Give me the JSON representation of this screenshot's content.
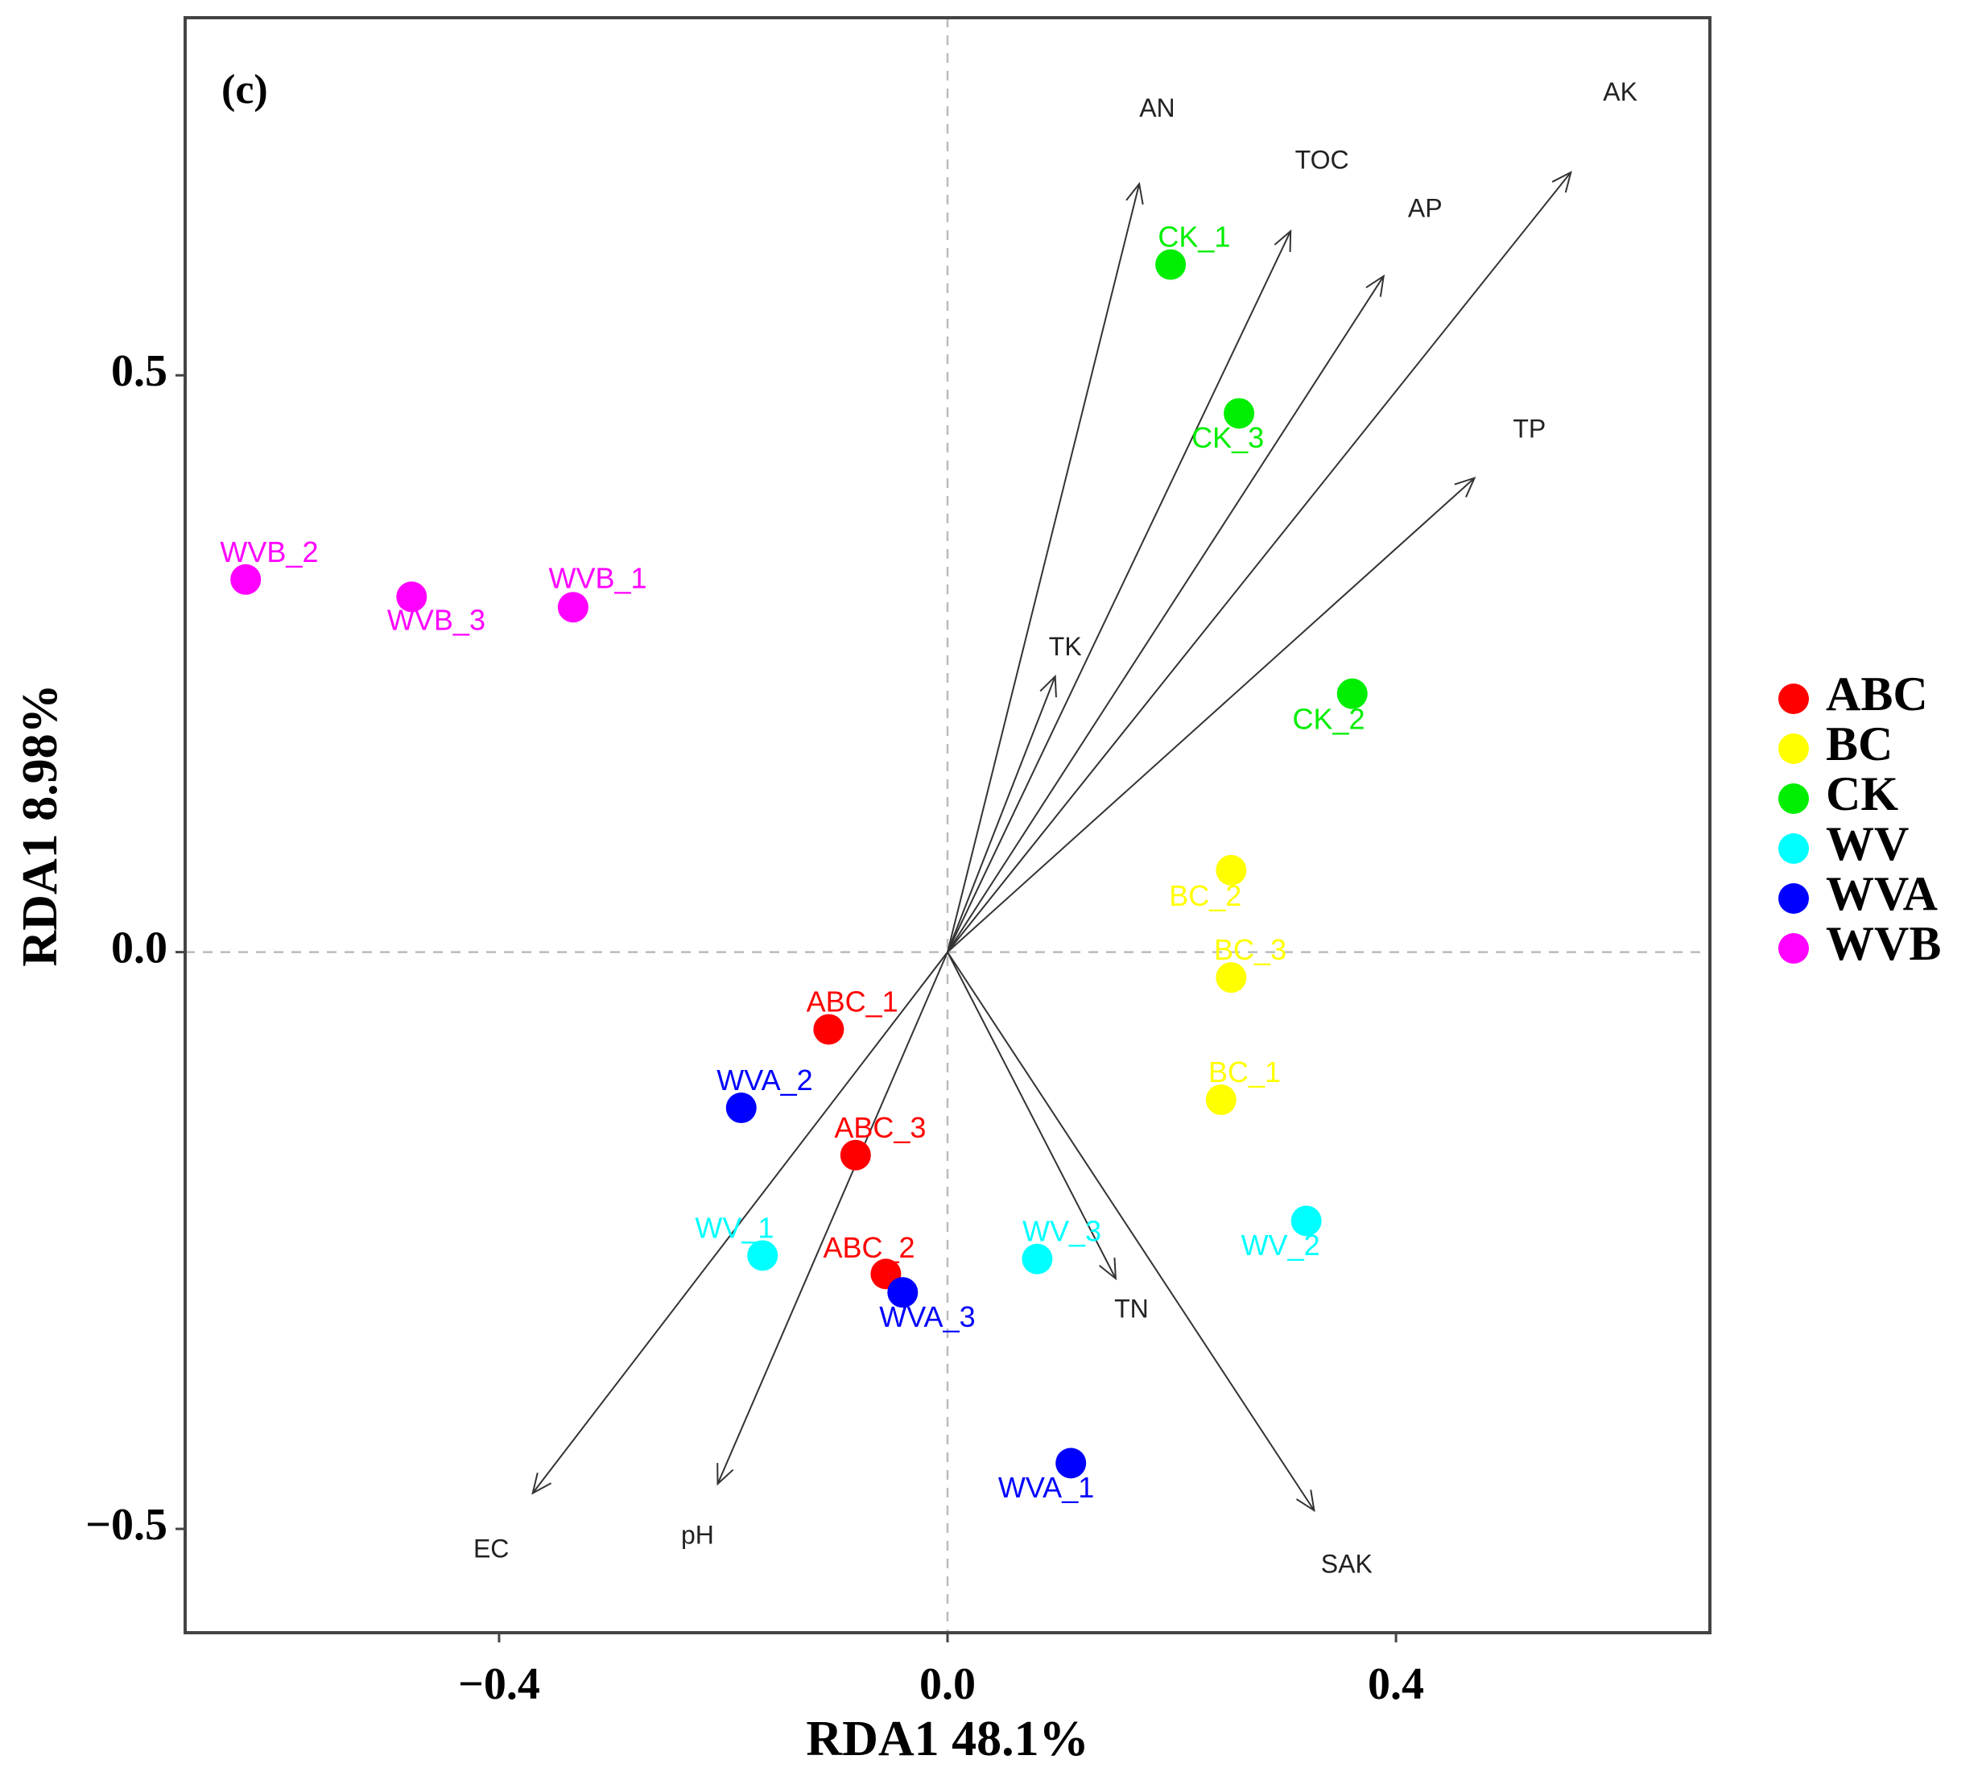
{
  "chart_data": {
    "type": "scatter",
    "panel_label": "(c)",
    "xlabel": "RDA1 48.1%",
    "ylabel": "RDA1 8.98%",
    "xlim": [
      -0.68,
      0.68
    ],
    "ylim": [
      -0.59,
      0.81
    ],
    "xticks": [
      {
        "value": -0.4,
        "label": "−0.4"
      },
      {
        "value": 0.0,
        "label": "0.0"
      },
      {
        "value": 0.4,
        "label": "0.4"
      }
    ],
    "yticks": [
      {
        "value": -0.5,
        "label": "−0.5"
      },
      {
        "value": 0.0,
        "label": "0.0"
      },
      {
        "value": 0.5,
        "label": "0.5"
      }
    ],
    "grid": false,
    "reference_lines": {
      "x": 0,
      "y": 0,
      "style": "dashed"
    },
    "legend_position": "right",
    "groups": [
      {
        "name": "ABC",
        "color": "#ff0000"
      },
      {
        "name": "BC",
        "color": "#ffff00"
      },
      {
        "name": "CK",
        "color": "#00ee00"
      },
      {
        "name": "WV",
        "color": "#00ffff"
      },
      {
        "name": "WVA",
        "color": "#0000ff"
      },
      {
        "name": "WVB",
        "color": "#ff00ff"
      }
    ],
    "samples": [
      {
        "label": "ABC_1",
        "group": "ABC",
        "x": -0.106,
        "y": -0.067,
        "label_x": -0.085,
        "label_y": -0.045
      },
      {
        "label": "ABC_3",
        "group": "ABC",
        "x": -0.082,
        "y": -0.176,
        "label_x": -0.06,
        "label_y": -0.154
      },
      {
        "label": "ABC_2",
        "group": "ABC",
        "x": -0.055,
        "y": -0.279,
        "label_x": -0.07,
        "label_y": -0.258
      },
      {
        "label": "BC_2",
        "group": "BC",
        "x": 0.253,
        "y": 0.071,
        "label_x": 0.23,
        "label_y": 0.047
      },
      {
        "label": "BC_3",
        "group": "BC",
        "x": 0.253,
        "y": -0.022,
        "label_x": 0.27,
        "label_y": 0.0
      },
      {
        "label": "BC_1",
        "group": "BC",
        "x": 0.244,
        "y": -0.128,
        "label_x": 0.265,
        "label_y": -0.106
      },
      {
        "label": "CK_1",
        "group": "CK",
        "x": 0.199,
        "y": 0.596,
        "label_x": 0.22,
        "label_y": 0.618
      },
      {
        "label": "CK_3",
        "group": "CK",
        "x": 0.26,
        "y": 0.467,
        "label_x": 0.25,
        "label_y": 0.444
      },
      {
        "label": "CK_2",
        "group": "CK",
        "x": 0.361,
        "y": 0.224,
        "label_x": 0.34,
        "label_y": 0.2
      },
      {
        "label": "WV_1",
        "group": "WV",
        "x": -0.165,
        "y": -0.263,
        "label_x": -0.19,
        "label_y": -0.241
      },
      {
        "label": "WV_3",
        "group": "WV",
        "x": 0.08,
        "y": -0.266,
        "label_x": 0.102,
        "label_y": -0.244
      },
      {
        "label": "WV_2",
        "group": "WV",
        "x": 0.32,
        "y": -0.233,
        "label_x": 0.297,
        "label_y": -0.256
      },
      {
        "label": "WVA_2",
        "group": "WVA",
        "x": -0.184,
        "y": -0.135,
        "label_x": -0.163,
        "label_y": -0.113
      },
      {
        "label": "WVA_3",
        "group": "WVA",
        "x": -0.04,
        "y": -0.295,
        "label_x": -0.018,
        "label_y": -0.318
      },
      {
        "label": "WVA_1",
        "group": "WVA",
        "x": 0.11,
        "y": -0.443,
        "label_x": 0.088,
        "label_y": -0.466
      },
      {
        "label": "WVB_2",
        "group": "WVB",
        "x": -0.626,
        "y": 0.323,
        "label_x": -0.605,
        "label_y": 0.345
      },
      {
        "label": "WVB_3",
        "group": "WVB",
        "x": -0.478,
        "y": 0.308,
        "label_x": -0.456,
        "label_y": 0.286
      },
      {
        "label": "WVB_1",
        "group": "WVB",
        "x": -0.334,
        "y": 0.299,
        "label_x": -0.312,
        "label_y": 0.322
      }
    ],
    "vectors": [
      {
        "label": "AN",
        "x": 0.171,
        "y": 0.666,
        "label_x": 0.187,
        "label_y": 0.73
      },
      {
        "label": "TOC",
        "x": 0.306,
        "y": 0.625,
        "label_x": 0.334,
        "label_y": 0.685
      },
      {
        "label": "AP",
        "x": 0.389,
        "y": 0.586,
        "label_x": 0.426,
        "label_y": 0.643
      },
      {
        "label": "AK",
        "x": 0.556,
        "y": 0.676,
        "label_x": 0.6,
        "label_y": 0.744
      },
      {
        "label": "TP",
        "x": 0.47,
        "y": 0.411,
        "label_x": 0.519,
        "label_y": 0.452
      },
      {
        "label": "TK",
        "x": 0.096,
        "y": 0.239,
        "label_x": 0.105,
        "label_y": 0.263
      },
      {
        "label": "TN",
        "x": 0.15,
        "y": -0.283,
        "label_x": 0.164,
        "label_y": -0.311
      },
      {
        "label": "SAK",
        "x": 0.327,
        "y": -0.484,
        "label_x": 0.356,
        "label_y": -0.532
      },
      {
        "label": "EC",
        "x": -0.37,
        "y": -0.469,
        "label_x": -0.407,
        "label_y": -0.519
      },
      {
        "label": "pH",
        "x": -0.205,
        "y": -0.461,
        "label_x": -0.223,
        "label_y": -0.507
      }
    ]
  }
}
